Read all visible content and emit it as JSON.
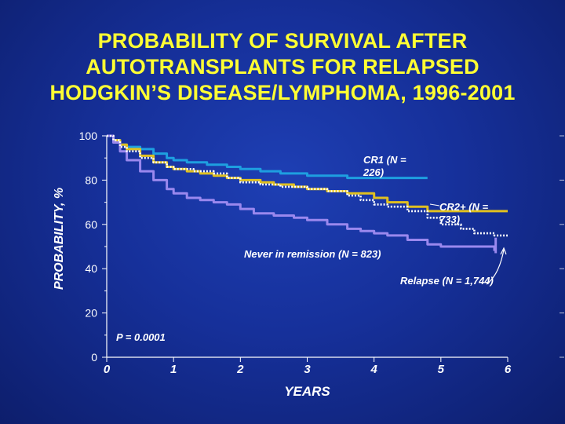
{
  "title_lines": [
    "PROBABILITY OF SURVIVAL AFTER",
    "AUTOTRANSPLANTS FOR RELAPSED",
    "HODGKIN’S DISEASE/LYMPHOMA, 1996-2001"
  ],
  "chart_data": {
    "type": "line",
    "title": "PROBABILITY OF SURVIVAL AFTER AUTOTRANSPLANTS FOR RELAPSED HODGKIN’S DISEASE/LYMPHOMA, 1996-2001",
    "xlabel": "YEARS",
    "ylabel": "PROBABILITY, %",
    "xlim": [
      0,
      6
    ],
    "ylim": [
      0,
      100
    ],
    "x_ticks": [
      0,
      1,
      2,
      3,
      4,
      5,
      6
    ],
    "y_ticks": [
      0,
      20,
      40,
      60,
      80,
      100
    ],
    "annotation": "P = 0.0001",
    "series": [
      {
        "name": "CR1",
        "label": [
          "CR1 (N =",
          "226)"
        ],
        "color": "#1e9fe0",
        "x": [
          0,
          0.1,
          0.2,
          0.3,
          0.5,
          0.7,
          0.9,
          1.0,
          1.2,
          1.5,
          1.8,
          2.0,
          2.3,
          2.6,
          2.8,
          3.0,
          3.3,
          3.6,
          4.0,
          4.5,
          4.8
        ],
        "y": [
          100,
          98,
          96,
          95,
          94,
          92,
          90,
          89,
          88,
          87,
          86,
          85,
          84,
          83,
          83,
          82,
          82,
          81,
          81,
          81,
          81
        ]
      },
      {
        "name": "CR2+",
        "label": [
          "CR2+ (N =",
          "733)"
        ],
        "color": "#e0c020",
        "x": [
          0,
          0.1,
          0.2,
          0.3,
          0.5,
          0.7,
          0.9,
          1.0,
          1.2,
          1.4,
          1.6,
          1.8,
          2.0,
          2.3,
          2.5,
          2.8,
          3.0,
          3.3,
          3.6,
          3.8,
          4.0,
          4.2,
          4.5,
          4.8,
          5.0,
          5.5,
          6.0
        ],
        "y": [
          100,
          98,
          96,
          94,
          91,
          88,
          86,
          85,
          84,
          83,
          82,
          81,
          80,
          79,
          78,
          77,
          76,
          75,
          74,
          74,
          72,
          70,
          68,
          66,
          66,
          66,
          66
        ]
      },
      {
        "name": "Never in remission",
        "label": [
          "Never in remission (N = 823)"
        ],
        "color": "#9a88ee",
        "x": [
          0,
          0.1,
          0.2,
          0.3,
          0.5,
          0.7,
          0.9,
          1.0,
          1.2,
          1.4,
          1.6,
          1.8,
          2.0,
          2.2,
          2.5,
          2.8,
          3.0,
          3.3,
          3.6,
          3.8,
          4.0,
          4.2,
          4.5,
          4.8,
          5.0,
          5.3,
          5.5,
          5.8
        ],
        "y": [
          100,
          97,
          93,
          89,
          84,
          80,
          76,
          74,
          72,
          71,
          70,
          69,
          67,
          65,
          64,
          63,
          62,
          60,
          58,
          57,
          56,
          55,
          53,
          51,
          50,
          50,
          50,
          48
        ]
      },
      {
        "name": "Relapse",
        "label": [
          "Relapse (N = 1,744)"
        ],
        "color": "#ffffff",
        "x": [
          0,
          0.1,
          0.2,
          0.3,
          0.5,
          0.7,
          0.9,
          1.0,
          1.3,
          1.6,
          1.8,
          2.0,
          2.3,
          2.6,
          3.0,
          3.3,
          3.6,
          3.8,
          4.0,
          4.2,
          4.5,
          4.8,
          5.0,
          5.3,
          5.5,
          5.8,
          6.0
        ],
        "y": [
          100,
          98,
          95,
          93,
          90,
          88,
          86,
          85,
          84,
          83,
          81,
          79,
          78,
          77,
          76,
          75,
          73,
          71,
          69,
          68,
          66,
          63,
          60,
          58,
          56,
          55,
          55
        ]
      }
    ]
  }
}
